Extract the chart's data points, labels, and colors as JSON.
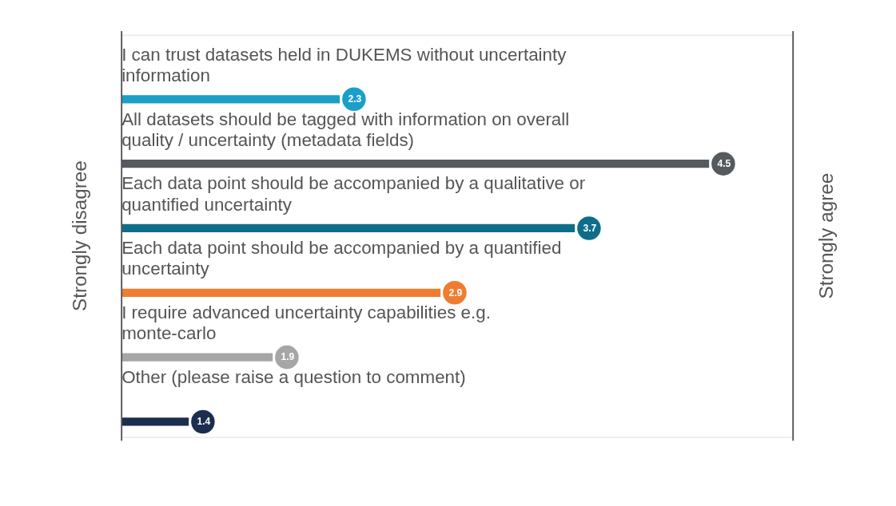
{
  "chart_data": {
    "type": "bar",
    "orientation": "horizontal",
    "categories": [
      "I can trust datasets held in DUKEMS without uncertainty information",
      "All datasets should be tagged with information on overall quality / uncertainty (metadata fields)",
      "Each data point should be accompanied by a qualitative or quantified uncertainty",
      "Each data point should be accompanied by a quantified uncertainty",
      "I require advanced uncertainty capabilities e.g. monte-carlo",
      "Other (please raise a question to comment)"
    ],
    "values": [
      2.3,
      4.5,
      3.7,
      2.9,
      1.9,
      1.4
    ],
    "colors": [
      "#1a9fc9",
      "#555a5e",
      "#0e6e8a",
      "#ee7d31",
      "#a6a6a6",
      "#1b2e4f"
    ],
    "xlim": [
      1,
      5
    ],
    "annotations": [
      "Strongly disagree",
      "Strongly agree"
    ],
    "data_labels": true
  }
}
